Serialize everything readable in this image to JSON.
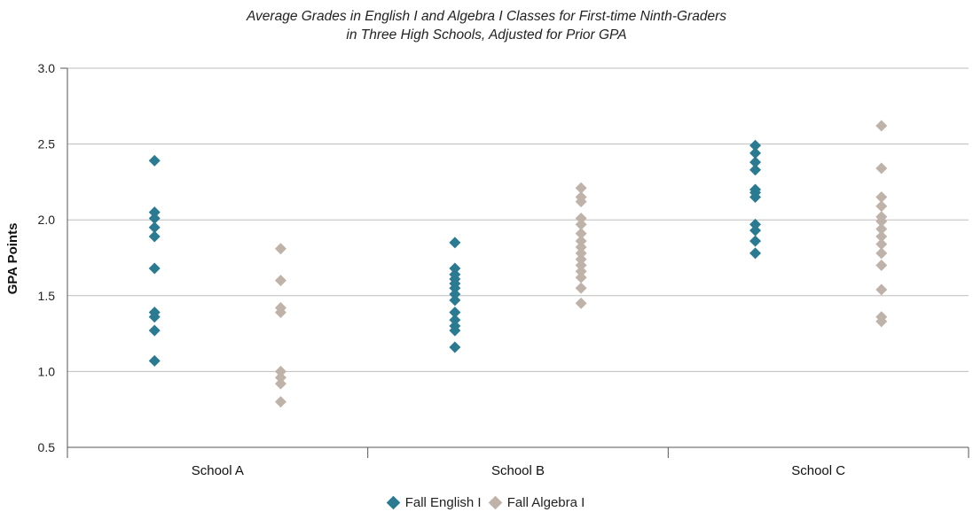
{
  "chart_data": {
    "type": "scatter",
    "title_line1": "Average Grades in English I and Algebra I Classes for First-time Ninth-Graders",
    "title_line2": "in Three High Schools, Adjusted for Prior GPA",
    "ylabel": "GPA Points",
    "ylim": [
      0.5,
      3.0
    ],
    "yticks": [
      "0.5",
      "1.0",
      "1.5",
      "2.0",
      "2.5",
      "3.0"
    ],
    "categories": [
      "School A",
      "School B",
      "School C"
    ],
    "grid": "horizontal",
    "legend_position": "bottom",
    "series": [
      {
        "name": "Fall English I",
        "color": "#2a7a92",
        "values": [
          [
            2.39,
            2.05,
            2.01,
            1.95,
            1.89,
            1.68,
            1.39,
            1.36,
            1.27,
            1.07
          ],
          [
            1.85,
            1.68,
            1.64,
            1.61,
            1.58,
            1.55,
            1.51,
            1.47,
            1.39,
            1.34,
            1.3,
            1.27,
            1.16
          ],
          [
            2.49,
            2.44,
            2.38,
            2.33,
            2.2,
            2.18,
            2.15,
            1.97,
            1.93,
            1.86,
            1.78
          ]
        ]
      },
      {
        "name": "Fall Algebra I",
        "color": "#bfb3a9",
        "values": [
          [
            1.81,
            1.6,
            1.42,
            1.39,
            1.0,
            0.96,
            0.92,
            0.8
          ],
          [
            2.21,
            2.15,
            2.12,
            2.01,
            1.97,
            1.91,
            1.86,
            1.82,
            1.78,
            1.74,
            1.7,
            1.66,
            1.62,
            1.55,
            1.45
          ],
          [
            2.62,
            2.34,
            2.15,
            2.09,
            2.02,
            1.99,
            1.94,
            1.89,
            1.84,
            1.78,
            1.7,
            1.54,
            1.36,
            1.33
          ]
        ]
      }
    ]
  }
}
